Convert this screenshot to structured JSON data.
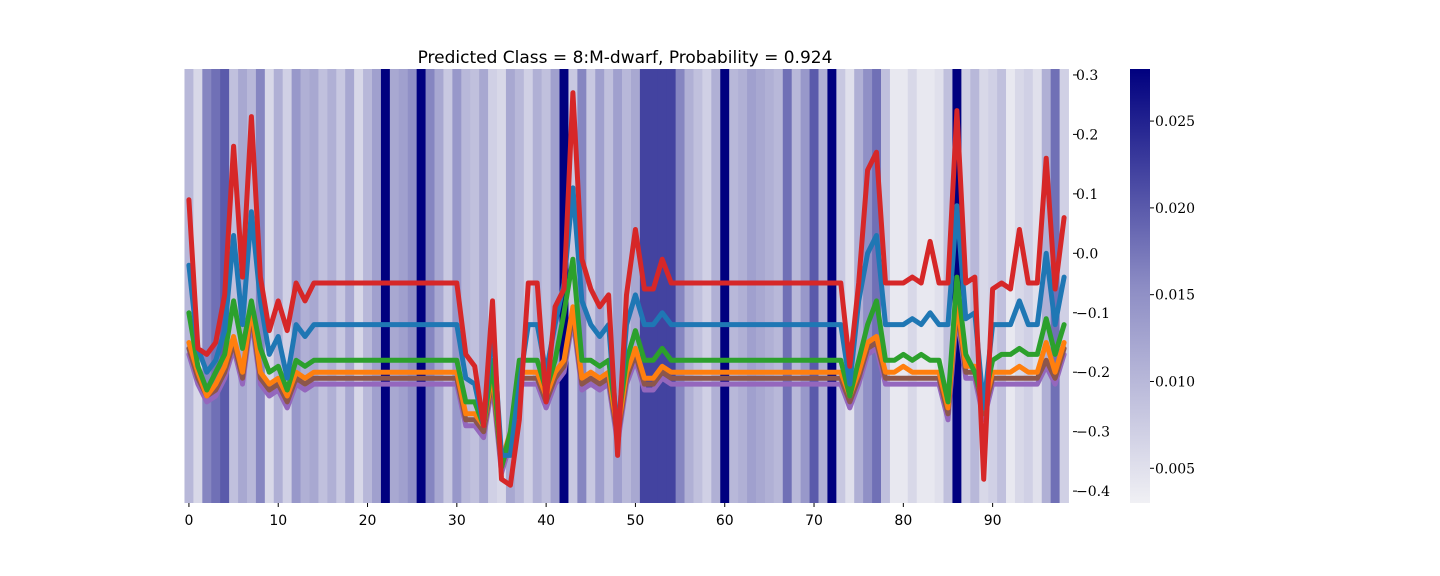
{
  "chart_data": {
    "type": "line",
    "title": "Predicted Class = 8:M-dwarf, Probability = 0.924",
    "xlabel": "",
    "ylabel": "",
    "xlim": [
      -1,
      99
    ],
    "ylim": [
      -0.42,
      0.31
    ],
    "x_ticks": [
      0,
      10,
      20,
      30,
      40,
      50,
      60,
      70,
      80,
      90
    ],
    "y_ticks": [
      0.3,
      0.2,
      0.1,
      0.0,
      -0.1,
      -0.2,
      -0.3,
      -0.4
    ],
    "y_tick_labels": [
      "0.3",
      "0.2",
      "0.1",
      "0.0",
      "−0.1",
      "−0.2",
      "−0.3",
      "−0.4"
    ],
    "y_axis_position": "right",
    "grid": false,
    "legend": "none",
    "background_heatmap": {
      "colormap": "white-to-navy",
      "color_low": "#f0f0f4",
      "color_high": "#00007f",
      "vmin": 0.003,
      "vmax": 0.028,
      "colorbar_ticks": [
        0.005,
        0.01,
        0.015,
        0.02,
        0.025
      ],
      "colorbar_tick_labels": [
        "0.005",
        "0.010",
        "0.015",
        "0.020",
        "0.025"
      ],
      "values": [
        0.01,
        0.006,
        0.016,
        0.018,
        0.02,
        0.009,
        0.012,
        0.01,
        0.016,
        0.006,
        0.011,
        0.007,
        0.014,
        0.011,
        0.012,
        0.009,
        0.011,
        0.008,
        0.012,
        0.006,
        0.01,
        0.013,
        0.028,
        0.012,
        0.013,
        0.015,
        0.028,
        0.016,
        0.012,
        0.008,
        0.014,
        0.01,
        0.009,
        0.012,
        0.007,
        0.006,
        0.012,
        0.01,
        0.007,
        0.011,
        0.009,
        0.013,
        0.028,
        0.008,
        0.016,
        0.008,
        0.013,
        0.009,
        0.013,
        0.01,
        0.012,
        0.022,
        0.022,
        0.022,
        0.022,
        0.016,
        0.011,
        0.009,
        0.007,
        0.011,
        0.028,
        0.01,
        0.011,
        0.013,
        0.012,
        0.011,
        0.01,
        0.018,
        0.01,
        0.014,
        0.02,
        0.011,
        0.028,
        0.008,
        0.005,
        0.011,
        0.015,
        0.018,
        0.009,
        0.004,
        0.004,
        0.006,
        0.004,
        0.004,
        0.005,
        0.009,
        0.028,
        0.007,
        0.01,
        0.006,
        0.007,
        0.009,
        0.004,
        0.006,
        0.007,
        0.005,
        0.011,
        0.018,
        0.007
      ]
    },
    "series": [
      {
        "color": "#9467bd",
        "values": [
          -0.17,
          -0.22,
          -0.25,
          -0.24,
          -0.21,
          -0.16,
          -0.22,
          -0.11,
          -0.22,
          -0.24,
          -0.23,
          -0.26,
          -0.22,
          -0.23,
          -0.22,
          -0.22,
          -0.22,
          -0.22,
          -0.22,
          -0.22,
          -0.22,
          -0.22,
          -0.22,
          -0.22,
          -0.22,
          -0.22,
          -0.22,
          -0.22,
          -0.22,
          -0.22,
          -0.22,
          -0.29,
          -0.29,
          -0.31,
          -0.22,
          -0.37,
          -0.32,
          -0.22,
          -0.22,
          -0.22,
          -0.26,
          -0.22,
          -0.2,
          -0.11,
          -0.23,
          -0.22,
          -0.23,
          -0.22,
          -0.32,
          -0.22,
          -0.18,
          -0.23,
          -0.23,
          -0.21,
          -0.22,
          -0.22,
          -0.22,
          -0.22,
          -0.22,
          -0.22,
          -0.22,
          -0.22,
          -0.22,
          -0.22,
          -0.22,
          -0.22,
          -0.22,
          -0.22,
          -0.22,
          -0.22,
          -0.22,
          -0.22,
          -0.22,
          -0.22,
          -0.26,
          -0.22,
          -0.17,
          -0.16,
          -0.22,
          -0.22,
          -0.22,
          -0.22,
          -0.22,
          -0.22,
          -0.22,
          -0.28,
          -0.1,
          -0.21,
          -0.21,
          -0.28,
          -0.22,
          -0.22,
          -0.22,
          -0.22,
          -0.22,
          -0.22,
          -0.19,
          -0.22,
          -0.17
        ]
      },
      {
        "color": "#8c564b",
        "values": [
          -0.16,
          -0.21,
          -0.24,
          -0.23,
          -0.2,
          -0.15,
          -0.21,
          -0.1,
          -0.21,
          -0.23,
          -0.22,
          -0.25,
          -0.21,
          -0.22,
          -0.21,
          -0.21,
          -0.21,
          -0.21,
          -0.21,
          -0.21,
          -0.21,
          -0.21,
          -0.21,
          -0.21,
          -0.21,
          -0.21,
          -0.21,
          -0.21,
          -0.21,
          -0.21,
          -0.21,
          -0.28,
          -0.28,
          -0.3,
          -0.21,
          -0.36,
          -0.31,
          -0.21,
          -0.21,
          -0.21,
          -0.25,
          -0.21,
          -0.19,
          -0.1,
          -0.22,
          -0.21,
          -0.22,
          -0.21,
          -0.31,
          -0.21,
          -0.17,
          -0.22,
          -0.22,
          -0.2,
          -0.21,
          -0.21,
          -0.21,
          -0.21,
          -0.21,
          -0.21,
          -0.21,
          -0.21,
          -0.21,
          -0.21,
          -0.21,
          -0.21,
          -0.21,
          -0.21,
          -0.21,
          -0.21,
          -0.21,
          -0.21,
          -0.21,
          -0.21,
          -0.25,
          -0.21,
          -0.16,
          -0.15,
          -0.21,
          -0.21,
          -0.21,
          -0.21,
          -0.21,
          -0.21,
          -0.21,
          -0.27,
          -0.09,
          -0.2,
          -0.2,
          -0.27,
          -0.21,
          -0.21,
          -0.21,
          -0.21,
          -0.21,
          -0.21,
          -0.18,
          -0.21,
          -0.16
        ]
      },
      {
        "color": "#ff7f0e",
        "values": [
          -0.15,
          -0.2,
          -0.24,
          -0.22,
          -0.19,
          -0.14,
          -0.2,
          -0.09,
          -0.2,
          -0.22,
          -0.21,
          -0.24,
          -0.2,
          -0.21,
          -0.2,
          -0.2,
          -0.2,
          -0.2,
          -0.2,
          -0.2,
          -0.2,
          -0.2,
          -0.2,
          -0.2,
          -0.2,
          -0.2,
          -0.2,
          -0.2,
          -0.2,
          -0.2,
          -0.2,
          -0.27,
          -0.27,
          -0.29,
          -0.2,
          -0.35,
          -0.3,
          -0.2,
          -0.2,
          -0.2,
          -0.24,
          -0.2,
          -0.18,
          -0.09,
          -0.21,
          -0.2,
          -0.21,
          -0.2,
          -0.3,
          -0.2,
          -0.16,
          -0.21,
          -0.21,
          -0.19,
          -0.2,
          -0.2,
          -0.2,
          -0.2,
          -0.2,
          -0.2,
          -0.2,
          -0.2,
          -0.2,
          -0.2,
          -0.2,
          -0.2,
          -0.2,
          -0.2,
          -0.2,
          -0.2,
          -0.2,
          -0.2,
          -0.2,
          -0.2,
          -0.24,
          -0.2,
          -0.15,
          -0.14,
          -0.2,
          -0.2,
          -0.19,
          -0.2,
          -0.2,
          -0.2,
          -0.2,
          -0.26,
          -0.08,
          -0.19,
          -0.19,
          -0.26,
          -0.2,
          -0.2,
          -0.2,
          -0.19,
          -0.2,
          -0.2,
          -0.15,
          -0.2,
          -0.15
        ]
      },
      {
        "color": "#2ca02c",
        "values": [
          -0.1,
          -0.19,
          -0.23,
          -0.2,
          -0.17,
          -0.08,
          -0.16,
          -0.08,
          -0.16,
          -0.2,
          -0.19,
          -0.23,
          -0.18,
          -0.19,
          -0.18,
          -0.18,
          -0.18,
          -0.18,
          -0.18,
          -0.18,
          -0.18,
          -0.18,
          -0.18,
          -0.18,
          -0.18,
          -0.18,
          -0.18,
          -0.18,
          -0.18,
          -0.18,
          -0.18,
          -0.25,
          -0.25,
          -0.29,
          -0.18,
          -0.36,
          -0.3,
          -0.18,
          -0.18,
          -0.18,
          -0.23,
          -0.18,
          -0.1,
          -0.01,
          -0.18,
          -0.18,
          -0.19,
          -0.18,
          -0.29,
          -0.18,
          -0.13,
          -0.18,
          -0.18,
          -0.16,
          -0.18,
          -0.18,
          -0.18,
          -0.18,
          -0.18,
          -0.18,
          -0.18,
          -0.18,
          -0.18,
          -0.18,
          -0.18,
          -0.18,
          -0.18,
          -0.18,
          -0.18,
          -0.18,
          -0.18,
          -0.18,
          -0.18,
          -0.18,
          -0.24,
          -0.18,
          -0.12,
          -0.08,
          -0.18,
          -0.18,
          -0.17,
          -0.18,
          -0.17,
          -0.18,
          -0.18,
          -0.25,
          -0.04,
          -0.17,
          -0.2,
          -0.25,
          -0.18,
          -0.17,
          -0.17,
          -0.16,
          -0.17,
          -0.17,
          -0.11,
          -0.17,
          -0.12
        ]
      },
      {
        "color": "#1f77b4",
        "values": [
          -0.02,
          -0.16,
          -0.2,
          -0.18,
          -0.13,
          0.03,
          -0.12,
          0.07,
          -0.08,
          -0.17,
          -0.14,
          -0.21,
          -0.12,
          -0.14,
          -0.12,
          -0.12,
          -0.12,
          -0.12,
          -0.12,
          -0.12,
          -0.12,
          -0.12,
          -0.12,
          -0.12,
          -0.12,
          -0.12,
          -0.12,
          -0.12,
          -0.12,
          -0.12,
          -0.12,
          -0.21,
          -0.22,
          -0.29,
          -0.12,
          -0.34,
          -0.34,
          -0.22,
          -0.12,
          -0.12,
          -0.2,
          -0.12,
          -0.05,
          0.11,
          -0.08,
          -0.12,
          -0.14,
          -0.12,
          -0.31,
          -0.12,
          -0.07,
          -0.12,
          -0.12,
          -0.1,
          -0.12,
          -0.12,
          -0.12,
          -0.12,
          -0.12,
          -0.12,
          -0.12,
          -0.12,
          -0.12,
          -0.12,
          -0.12,
          -0.12,
          -0.12,
          -0.12,
          -0.12,
          -0.12,
          -0.12,
          -0.12,
          -0.12,
          -0.12,
          -0.22,
          -0.08,
          0.0,
          0.03,
          -0.12,
          -0.12,
          -0.12,
          -0.11,
          -0.12,
          -0.1,
          -0.12,
          -0.12,
          0.08,
          -0.11,
          -0.1,
          -0.26,
          -0.12,
          -0.12,
          -0.12,
          -0.08,
          -0.12,
          -0.12,
          0.0,
          -0.12,
          -0.04
        ]
      },
      {
        "color": "#d62728",
        "values": [
          0.09,
          -0.16,
          -0.17,
          -0.15,
          -0.07,
          0.18,
          -0.04,
          0.23,
          -0.04,
          -0.13,
          -0.08,
          -0.13,
          -0.05,
          -0.08,
          -0.05,
          -0.05,
          -0.05,
          -0.05,
          -0.05,
          -0.05,
          -0.05,
          -0.05,
          -0.05,
          -0.05,
          -0.05,
          -0.05,
          -0.05,
          -0.05,
          -0.05,
          -0.05,
          -0.05,
          -0.17,
          -0.19,
          -0.29,
          -0.08,
          -0.38,
          -0.39,
          -0.28,
          -0.05,
          -0.05,
          -0.25,
          -0.09,
          -0.06,
          0.27,
          -0.01,
          -0.06,
          -0.09,
          -0.07,
          -0.34,
          -0.07,
          0.04,
          -0.06,
          -0.06,
          -0.01,
          -0.05,
          -0.05,
          -0.05,
          -0.05,
          -0.05,
          -0.05,
          -0.05,
          -0.05,
          -0.05,
          -0.05,
          -0.05,
          -0.05,
          -0.05,
          -0.05,
          -0.05,
          -0.05,
          -0.05,
          -0.05,
          -0.05,
          -0.05,
          -0.19,
          -0.05,
          0.14,
          0.17,
          -0.05,
          -0.05,
          -0.05,
          -0.04,
          -0.05,
          0.02,
          -0.05,
          -0.05,
          0.24,
          -0.05,
          -0.04,
          -0.38,
          -0.06,
          -0.05,
          -0.06,
          0.04,
          -0.05,
          -0.05,
          0.16,
          -0.06,
          0.06
        ]
      }
    ]
  }
}
